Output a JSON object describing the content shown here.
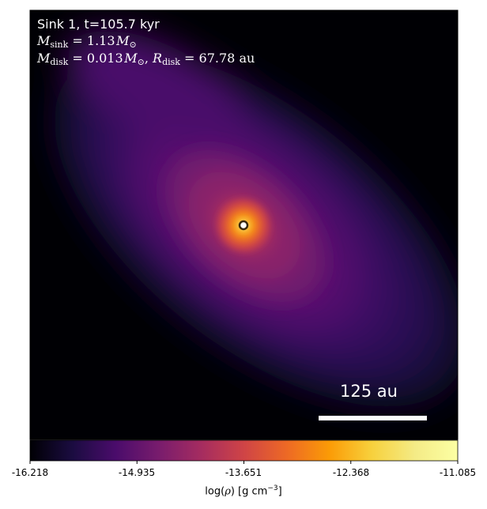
{
  "panel": {
    "sink_line": "Sink 1, t=105.7 kyr",
    "msink_value": "1.13",
    "mdisk_value": "0.013",
    "rdisk_value": "67.78",
    "unit_au": "au",
    "sub_sink": "sink",
    "sub_disk": "disk"
  },
  "scalebar": {
    "label": "125 au"
  },
  "colorbar": {
    "ticks": [
      "-16.218",
      "-14.935",
      "-13.651",
      "-12.368",
      "-11.085"
    ],
    "label_prefix": "log(",
    "label_mid": ") [g cm",
    "label_exp": "−3",
    "label_suffix": "]",
    "cmap": "inferno"
  },
  "colors": {
    "background": "#000004",
    "disk_core": "#fcffa4",
    "sink_marker_fill": "#ffffff",
    "sink_marker_edge": "#3a2a10"
  }
}
